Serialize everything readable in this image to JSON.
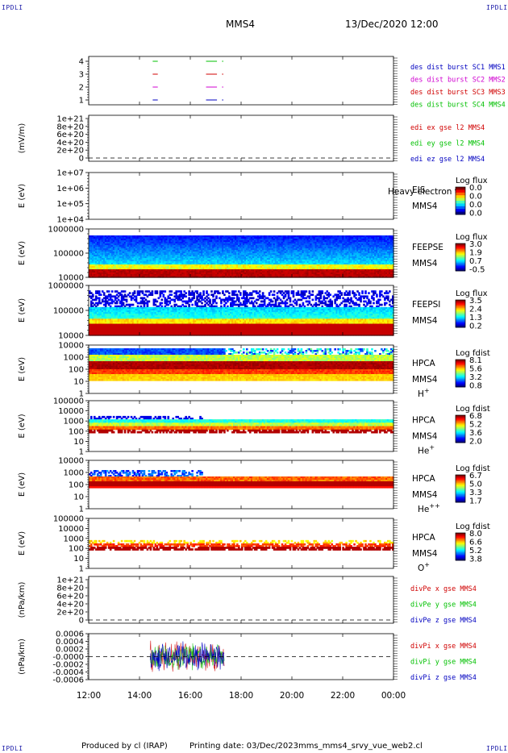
{
  "header": {
    "corner_tl": "IPDLI",
    "corner_tr": "IPDLI",
    "corner_bl": "IPDLI",
    "corner_br": "IPDLI",
    "spacecraft": "MMS4",
    "datetime": "13/Dec/2020 12:00"
  },
  "footer": {
    "produced_by": "Produced by cl (IRAP)",
    "printing_date": "Printing date: 03/Dec/2023",
    "filename": "mms_mms4_srvy_vue_web2.cl"
  },
  "colors": {
    "red": "#d00000",
    "magenta": "#d000d0",
    "green": "#00c000",
    "blue": "#0000c0"
  },
  "chart_data": {
    "type": "heatmap",
    "x_axis": {
      "ticks": [
        "12:00",
        "14:00",
        "16:00",
        "18:00",
        "20:00",
        "22:00",
        "00:00"
      ],
      "range_hours": [
        12,
        24
      ]
    },
    "panels": [
      {
        "id": "burst",
        "kind": "lines",
        "yticks": [
          "4",
          "3",
          "2",
          "1"
        ],
        "legend": [
          {
            "text": "des dist burst SC1 MMS1",
            "color": "#0000c0"
          },
          {
            "text": "des dist burst SC2 MMS2",
            "color": "#d000d0"
          },
          {
            "text": "des dist burst SC3 MMS3",
            "color": "#d00000"
          },
          {
            "text": "des dist burst SC4 MMS4",
            "color": "#00c000"
          }
        ],
        "segments": [
          {
            "level": 4,
            "color": "#00c000",
            "t": [
              [
                14.52,
                14.72
              ],
              [
                16.62,
                17.05
              ],
              [
                17.25,
                17.3
              ]
            ]
          },
          {
            "level": 3,
            "color": "#d00000",
            "t": [
              [
                14.52,
                14.72
              ],
              [
                16.62,
                17.05
              ],
              [
                17.25,
                17.3
              ]
            ]
          },
          {
            "level": 2,
            "color": "#d000d0",
            "t": [
              [
                14.52,
                14.72
              ],
              [
                16.62,
                17.05
              ],
              [
                17.25,
                17.3
              ]
            ]
          },
          {
            "level": 1,
            "color": "#0000c0",
            "t": [
              [
                14.52,
                14.72
              ],
              [
                16.62,
                17.05
              ],
              [
                17.25,
                17.3
              ]
            ]
          }
        ]
      },
      {
        "id": "edi",
        "kind": "empty",
        "ylabel": "(mV/m)",
        "yticks": [
          "1e+21",
          "8e+20",
          "6e+20",
          "4e+20",
          "2e+20",
          "0"
        ],
        "legend": [
          {
            "text": "edi ex gse l2 MMS4",
            "color": "#d00000"
          },
          {
            "text": "edi ey gse l2 MMS4",
            "color": "#00c000"
          },
          {
            "text": "edi ez gse l2 MMS4",
            "color": "#0000c0"
          }
        ]
      },
      {
        "id": "eis",
        "kind": "empty",
        "ylabel": "E (eV)",
        "yticks": [
          "1e+07",
          "1e+06",
          "1e+05",
          "1e+04"
        ],
        "instrument": [
          "EIS",
          "MMS4"
        ],
        "overlay": "Heavy electron to",
        "cbar": {
          "title": "Log flux",
          "labels": [
            "0.0",
            "0.0",
            "0.0",
            "0.0"
          ]
        }
      },
      {
        "id": "feeps_e",
        "kind": "spec",
        "ylabel": "E (eV)",
        "yticks": [
          "1000000",
          "100000",
          "10000"
        ],
        "instrument": [
          "FEEPSE",
          "MMS4"
        ],
        "cbar": {
          "title": "Log flux",
          "labels": [
            "3.0",
            "1.9",
            "0.7",
            "-0.5"
          ]
        }
      },
      {
        "id": "feeps_i",
        "kind": "spec",
        "ylabel": "E (eV)",
        "yticks": [
          "1000000",
          "100000",
          "10000"
        ],
        "instrument": [
          "FEEPSI",
          "MMS4"
        ],
        "cbar": {
          "title": "Log flux",
          "labels": [
            "3.5",
            "2.4",
            "1.3",
            "0.2"
          ]
        }
      },
      {
        "id": "hpca_h",
        "kind": "spec",
        "ylabel": "E (eV)",
        "yticks": [
          "10000",
          "1000",
          "100",
          "10",
          "1"
        ],
        "instrument": [
          "HPCA",
          "MMS4"
        ],
        "species": "H",
        "charge": "+",
        "cbar": {
          "title": "Log fdist",
          "labels": [
            "8.1",
            "5.6",
            "3.2",
            "0.8"
          ]
        }
      },
      {
        "id": "hpca_he",
        "kind": "spec",
        "ylabel": "E (eV)",
        "yticks": [
          "100000",
          "10000",
          "1000",
          "100",
          "10",
          "1"
        ],
        "instrument": [
          "HPCA",
          "MMS4"
        ],
        "species": "He",
        "charge": "+",
        "cbar": {
          "title": "Log fdist",
          "labels": [
            "6.8",
            "5.2",
            "3.6",
            "2.0"
          ]
        }
      },
      {
        "id": "hpca_he2",
        "kind": "spec",
        "ylabel": "E (eV)",
        "yticks": [
          "10000",
          "1000",
          "100",
          "10",
          "1"
        ],
        "instrument": [
          "HPCA",
          "MMS4"
        ],
        "species": "He",
        "charge": "++",
        "cbar": {
          "title": "Log fdist",
          "labels": [
            "6.7",
            "5.0",
            "3.3",
            "1.7"
          ]
        }
      },
      {
        "id": "hpca_o",
        "kind": "spec",
        "ylabel": "E (eV)",
        "yticks": [
          "100000",
          "10000",
          "1000",
          "100",
          "10",
          "1"
        ],
        "instrument": [
          "HPCA",
          "MMS4"
        ],
        "species": "O",
        "charge": "+",
        "cbar": {
          "title": "Log fdist",
          "labels": [
            "8.0",
            "6.6",
            "5.2",
            "3.8"
          ]
        }
      },
      {
        "id": "divpe",
        "kind": "empty",
        "ylabel": "(nPa/km)",
        "yticks": [
          "1e+21",
          "8e+20",
          "6e+20",
          "4e+20",
          "2e+20",
          "0"
        ],
        "legend": [
          {
            "text": "divPe x gse MMS4",
            "color": "#d00000"
          },
          {
            "text": "divPe y gse MMS4",
            "color": "#00c000"
          },
          {
            "text": "divPe z gse MMS4",
            "color": "#0000c0"
          }
        ]
      },
      {
        "id": "divpi",
        "kind": "noise",
        "ylabel": "(nPa/km)",
        "yticks": [
          "0.0006",
          "0.0004",
          "0.0002",
          "-0.0000",
          "-0.0002",
          "-0.0004",
          "-0.0006"
        ],
        "legend": [
          {
            "text": "divPi x gse MMS4",
            "color": "#d00000"
          },
          {
            "text": "divPi y gse MMS4",
            "color": "#00c000"
          },
          {
            "text": "divPi z gse MMS4",
            "color": "#0000c0"
          }
        ],
        "data_span_hours": [
          14.42,
          17.35
        ],
        "amplitude": 0.00045
      }
    ]
  }
}
